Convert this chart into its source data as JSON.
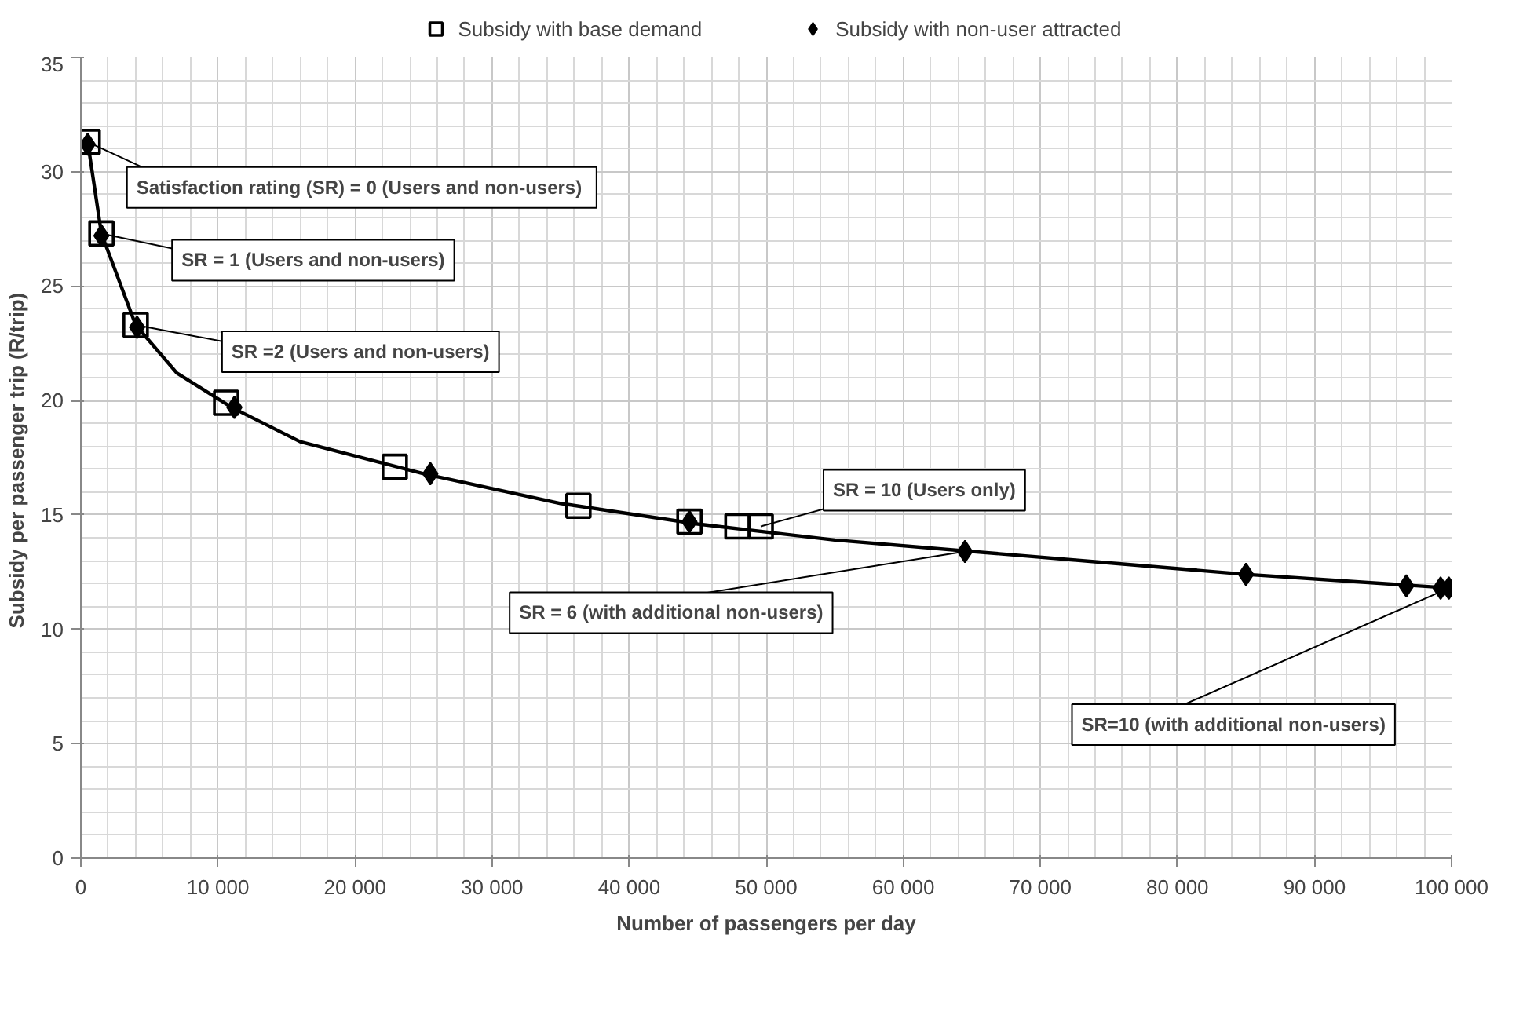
{
  "chart_data": {
    "type": "scatter",
    "xlabel": "Number of passengers per day",
    "ylabel": "Subsidy per passenger trip  (R/trip)",
    "xlim": [
      0,
      100000
    ],
    "ylim": [
      0,
      35
    ],
    "xticks": [
      0,
      {
        "value": 10000,
        "label": "10 000"
      },
      {
        "value": 20000,
        "label": "20 000"
      },
      {
        "value": 30000,
        "label": "30 000"
      },
      {
        "value": 40000,
        "label": "40 000"
      },
      {
        "value": 50000,
        "label": "50 000"
      },
      {
        "value": 60000,
        "label": "60 000"
      },
      {
        "value": 70000,
        "label": "70 000"
      },
      {
        "value": 80000,
        "label": "80 000"
      },
      {
        "value": 90000,
        "label": "90 000"
      },
      {
        "value": 100000,
        "label": "100 000"
      }
    ],
    "yticks": [
      0,
      5,
      10,
      15,
      20,
      25,
      30,
      35
    ],
    "grid": true,
    "legend": "top",
    "series": [
      {
        "name": "Subsidy with base demand",
        "type": "scatter",
        "marker": "square",
        "color": "#000000",
        "x": [
          500,
          1500,
          4000,
          10600,
          22900,
          36300,
          44400,
          47900,
          49600
        ],
        "values": [
          31.3,
          27.3,
          23.3,
          19.9,
          17.1,
          15.4,
          14.7,
          14.5,
          14.5
        ]
      },
      {
        "name": "Subsidy with non-user attracted",
        "type": "scatter",
        "marker": "diamond",
        "color": "#000000",
        "x": [
          500,
          1500,
          4100,
          11200,
          25500,
          44400,
          64500,
          85000,
          96700,
          99200,
          99800
        ],
        "values": [
          31.2,
          27.2,
          23.2,
          19.7,
          16.8,
          14.7,
          13.4,
          12.4,
          11.9,
          11.8,
          11.8
        ]
      },
      {
        "type": "line",
        "color": "#000000",
        "x": [
          500,
          1500,
          4000,
          7000,
          11000,
          16000,
          25000,
          35000,
          45000,
          55000,
          65000,
          75000,
          85000,
          100000
        ],
        "values": [
          31.3,
          27.3,
          23.3,
          21.2,
          19.7,
          18.2,
          16.8,
          15.5,
          14.6,
          13.9,
          13.4,
          12.9,
          12.4,
          11.8
        ]
      }
    ],
    "annotations": [
      {
        "text": "Satisfaction rating  (SR) = 0 (Users and non-users)",
        "x": 500,
        "y": 31.3
      },
      {
        "text": "SR = 1 (Users and non-users)",
        "x": 1500,
        "y": 27.3
      },
      {
        "text": "SR =2 (Users and non-users)",
        "x": 4000,
        "y": 23.3
      },
      {
        "text": "SR = 10 (Users only)",
        "x": 49600,
        "y": 14.5
      },
      {
        "text": "SR = 6 (with additional non-users)",
        "x": 64500,
        "y": 13.4
      },
      {
        "text": "SR=10 (with additional non-users)",
        "x": 99800,
        "y": 11.8
      }
    ]
  }
}
